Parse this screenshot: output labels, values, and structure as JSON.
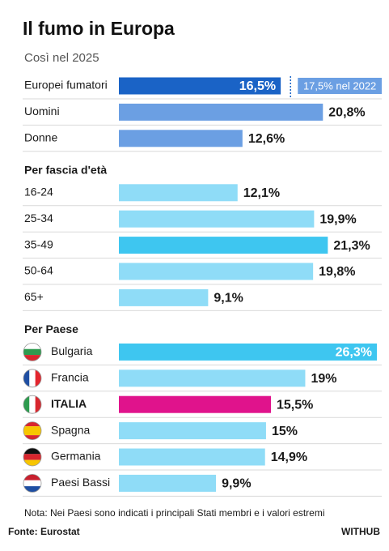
{
  "chart_data": {
    "type": "bar",
    "title": "Il fumo in Europa",
    "subtitle": "Così nel 2025",
    "sections": [
      {
        "categories": [
          "Europei fumatori",
          "Uomini",
          "Donne"
        ],
        "values": [
          16.5,
          20.8,
          12.6
        ],
        "value_labels": [
          "16,5%",
          "20,8%",
          "12,6%"
        ],
        "colors": [
          "#1a63c6",
          "#6b9fe3",
          "#6b9fe3"
        ],
        "label_inside": [
          true,
          false,
          false
        ],
        "reference": {
          "value": 17.5,
          "label": "17,5% nel 2022"
        }
      },
      {
        "heading": "Per fascia d'età",
        "categories": [
          "16-24",
          "25-34",
          "35-49",
          "50-64",
          "65+"
        ],
        "values": [
          12.1,
          19.9,
          21.3,
          19.8,
          9.1
        ],
        "value_labels": [
          "12,1%",
          "19,9%",
          "21,3%",
          "19,8%",
          "9,1%"
        ],
        "colors": [
          "#8fdcf7",
          "#8fdcf7",
          "#3ec6f0",
          "#8fdcf7",
          "#8fdcf7"
        ],
        "label_inside": [
          false,
          false,
          false,
          false,
          false
        ]
      },
      {
        "heading": "Per Paese",
        "categories": [
          "Bulgaria",
          "Francia",
          "ITALIA",
          "Spagna",
          "Germania",
          "Paesi Bassi"
        ],
        "values": [
          26.3,
          19,
          15.5,
          15,
          14.9,
          9.9
        ],
        "value_labels": [
          "26,3%",
          "19%",
          "15,5%",
          "15%",
          "14,9%",
          "9,9%"
        ],
        "colors": [
          "#3ec6f0",
          "#8fdcf7",
          "#e0138c",
          "#8fdcf7",
          "#8fdcf7",
          "#8fdcf7"
        ],
        "label_inside": [
          true,
          false,
          false,
          false,
          false,
          false
        ],
        "bold": [
          false,
          false,
          true,
          false,
          false,
          false
        ]
      }
    ],
    "note": "Nota: Nei Paesi sono indicati i principali Stati membri e i valori estremi",
    "source": "Fonte: Eurostat",
    "brand": "WITHUB"
  }
}
